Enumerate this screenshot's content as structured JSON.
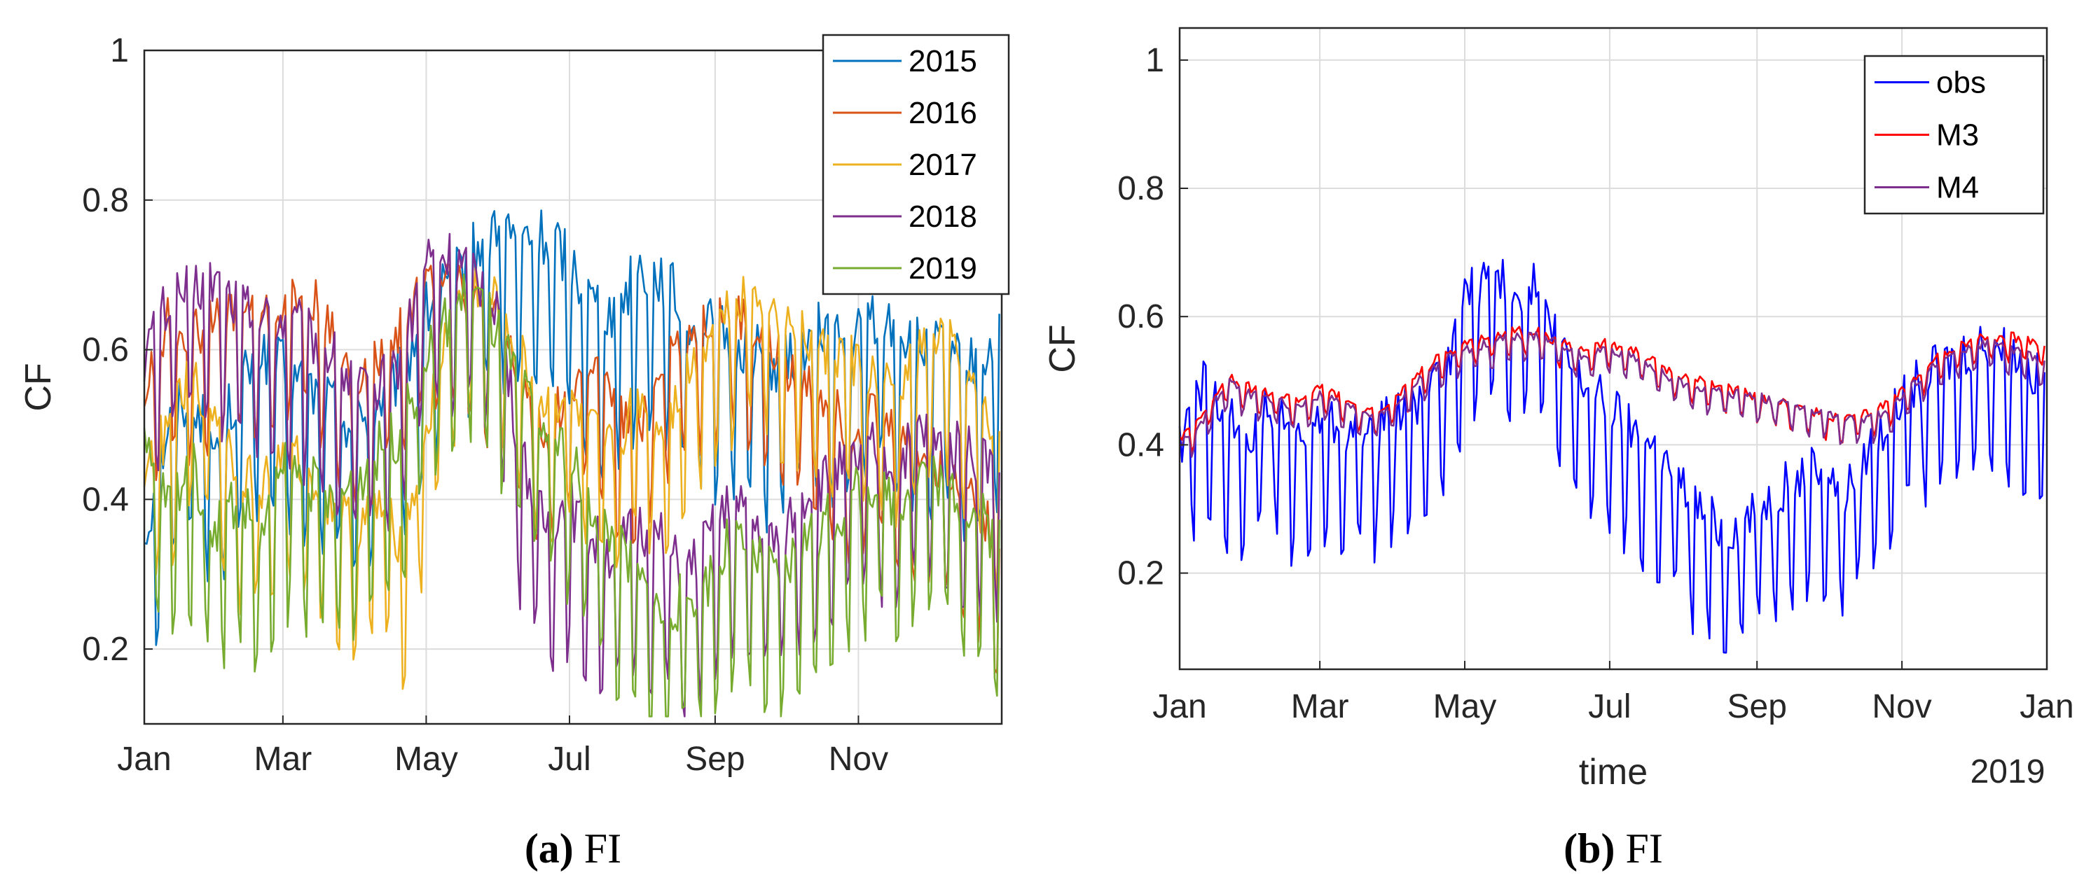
{
  "colors": {
    "2015": "#0072BD",
    "2016": "#D95319",
    "2017": "#EDB120",
    "2018": "#7E2F8E",
    "2019": "#77AC30",
    "obs": "#0000FF",
    "M3": "#FF0000",
    "M4": "#7E2F8E",
    "grid": "#DCDCDC",
    "axis": "#262626"
  },
  "captions": [
    {
      "letter": "(a)",
      "text": " FI"
    },
    {
      "letter": "(b)",
      "text": " FI"
    }
  ],
  "chart_data": [
    {
      "type": "line",
      "title": "",
      "xlabel": "",
      "ylabel": "CF",
      "xlim": [
        0,
        365
      ],
      "ylim": [
        0.1,
        1.0
      ],
      "grid": true,
      "legend_position": "top-right",
      "x_ticks": [
        {
          "label": "Jan",
          "day": 0
        },
        {
          "label": "Mar",
          "day": 59
        },
        {
          "label": "May",
          "day": 120
        },
        {
          "label": "Jul",
          "day": 181
        },
        {
          "label": "Sep",
          "day": 243
        },
        {
          "label": "Nov",
          "day": 304
        }
      ],
      "y_ticks": [
        {
          "label": "0.2",
          "value": 0.2
        },
        {
          "label": "0.4",
          "value": 0.4
        },
        {
          "label": "0.6",
          "value": 0.6
        },
        {
          "label": "0.8",
          "value": 0.8
        },
        {
          "label": "1",
          "value": 1.0
        }
      ],
      "x": [
        0,
        10,
        20,
        30,
        40,
        50,
        60,
        70,
        80,
        90,
        100,
        110,
        120,
        130,
        140,
        150,
        160,
        170,
        180,
        190,
        200,
        210,
        220,
        230,
        240,
        250,
        260,
        270,
        280,
        290,
        300,
        310,
        320,
        330,
        340,
        350,
        364
      ],
      "series": [
        {
          "name": "2015",
          "values": [
            0.3,
            0.45,
            0.5,
            0.42,
            0.5,
            0.55,
            0.52,
            0.5,
            0.48,
            0.45,
            0.48,
            0.52,
            0.6,
            0.64,
            0.68,
            0.72,
            0.7,
            0.7,
            0.68,
            0.62,
            0.6,
            0.66,
            0.65,
            0.6,
            0.58,
            0.56,
            0.55,
            0.52,
            0.56,
            0.58,
            0.55,
            0.6,
            0.58,
            0.55,
            0.55,
            0.52,
            0.56
          ]
        },
        {
          "name": "2016",
          "values": [
            0.5,
            0.6,
            0.58,
            0.6,
            0.62,
            0.6,
            0.62,
            0.64,
            0.58,
            0.5,
            0.55,
            0.6,
            0.65,
            0.68,
            0.62,
            0.6,
            0.52,
            0.45,
            0.5,
            0.55,
            0.48,
            0.45,
            0.55,
            0.58,
            0.6,
            0.62,
            0.58,
            0.55,
            0.52,
            0.5,
            0.45,
            0.48,
            0.45,
            0.42,
            0.4,
            0.38,
            0.3
          ]
        },
        {
          "name": "2017",
          "values": [
            0.4,
            0.45,
            0.52,
            0.48,
            0.4,
            0.38,
            0.42,
            0.4,
            0.35,
            0.32,
            0.35,
            0.3,
            0.45,
            0.6,
            0.65,
            0.62,
            0.55,
            0.48,
            0.5,
            0.45,
            0.42,
            0.5,
            0.45,
            0.52,
            0.58,
            0.62,
            0.65,
            0.6,
            0.58,
            0.55,
            0.55,
            0.52,
            0.5,
            0.55,
            0.58,
            0.52,
            0.42
          ]
        },
        {
          "name": "2018",
          "values": [
            0.55,
            0.62,
            0.64,
            0.65,
            0.62,
            0.6,
            0.6,
            0.58,
            0.55,
            0.5,
            0.5,
            0.55,
            0.68,
            0.68,
            0.66,
            0.62,
            0.42,
            0.32,
            0.35,
            0.3,
            0.28,
            0.32,
            0.3,
            0.25,
            0.3,
            0.35,
            0.32,
            0.3,
            0.36,
            0.38,
            0.4,
            0.42,
            0.4,
            0.45,
            0.42,
            0.42,
            0.4
          ]
        },
        {
          "name": "2019",
          "values": [
            0.42,
            0.35,
            0.4,
            0.32,
            0.36,
            0.3,
            0.4,
            0.38,
            0.35,
            0.38,
            0.42,
            0.45,
            0.55,
            0.6,
            0.64,
            0.58,
            0.5,
            0.45,
            0.42,
            0.35,
            0.3,
            0.25,
            0.2,
            0.22,
            0.25,
            0.3,
            0.28,
            0.24,
            0.3,
            0.32,
            0.35,
            0.38,
            0.35,
            0.4,
            0.38,
            0.35,
            0.3
          ]
        }
      ]
    },
    {
      "type": "line",
      "title": "",
      "xlabel": "time",
      "xlabel_extra": "2019",
      "ylabel": "CF",
      "xlim": [
        0,
        365
      ],
      "ylim": [
        0.05,
        1.05
      ],
      "grid": true,
      "legend_position": "top-right",
      "x_ticks": [
        {
          "label": "Jan",
          "day": 0
        },
        {
          "label": "Mar",
          "day": 59
        },
        {
          "label": "May",
          "day": 120
        },
        {
          "label": "Jul",
          "day": 181
        },
        {
          "label": "Sep",
          "day": 243
        },
        {
          "label": "Nov",
          "day": 304
        },
        {
          "label": "Jan",
          "day": 365
        }
      ],
      "y_ticks": [
        {
          "label": "0.2",
          "value": 0.2
        },
        {
          "label": "0.4",
          "value": 0.4
        },
        {
          "label": "0.6",
          "value": 0.6
        },
        {
          "label": "0.8",
          "value": 0.8
        },
        {
          "label": "1",
          "value": 1.0
        }
      ],
      "x": [
        0,
        10,
        20,
        30,
        40,
        50,
        60,
        70,
        80,
        90,
        100,
        110,
        120,
        130,
        140,
        150,
        160,
        170,
        180,
        190,
        200,
        210,
        220,
        230,
        240,
        250,
        260,
        270,
        280,
        290,
        300,
        310,
        320,
        330,
        340,
        350,
        364
      ],
      "series": [
        {
          "name": "obs",
          "values": [
            0.35,
            0.45,
            0.4,
            0.38,
            0.42,
            0.35,
            0.4,
            0.38,
            0.38,
            0.4,
            0.42,
            0.45,
            0.58,
            0.62,
            0.6,
            0.6,
            0.5,
            0.45,
            0.42,
            0.38,
            0.35,
            0.3,
            0.25,
            0.22,
            0.25,
            0.28,
            0.3,
            0.32,
            0.28,
            0.35,
            0.4,
            0.45,
            0.48,
            0.5,
            0.52,
            0.5,
            0.45
          ]
        },
        {
          "name": "M3",
          "values": [
            0.4,
            0.44,
            0.5,
            0.48,
            0.47,
            0.46,
            0.48,
            0.46,
            0.44,
            0.46,
            0.5,
            0.53,
            0.55,
            0.56,
            0.57,
            0.57,
            0.55,
            0.54,
            0.55,
            0.54,
            0.52,
            0.5,
            0.49,
            0.48,
            0.47,
            0.46,
            0.45,
            0.44,
            0.43,
            0.44,
            0.46,
            0.5,
            0.53,
            0.55,
            0.56,
            0.56,
            0.55
          ]
        },
        {
          "name": "M4",
          "values": [
            0.39,
            0.43,
            0.49,
            0.47,
            0.46,
            0.45,
            0.47,
            0.45,
            0.44,
            0.45,
            0.49,
            0.52,
            0.54,
            0.55,
            0.56,
            0.56,
            0.55,
            0.53,
            0.54,
            0.53,
            0.51,
            0.49,
            0.48,
            0.47,
            0.47,
            0.46,
            0.45,
            0.44,
            0.43,
            0.43,
            0.45,
            0.49,
            0.52,
            0.54,
            0.55,
            0.54,
            0.52
          ]
        }
      ]
    }
  ]
}
